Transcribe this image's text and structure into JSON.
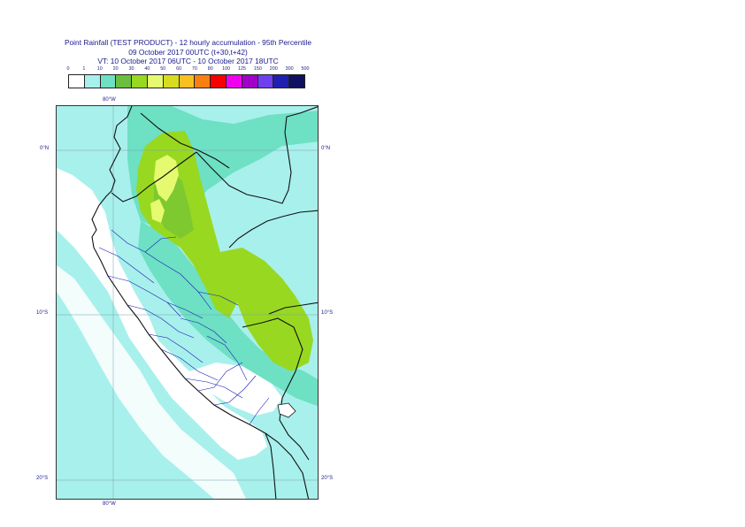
{
  "title": {
    "line1": "Point Rainfall (TEST PRODUCT) - 12 hourly accumulation - 95th Percentile",
    "line2": "09 October 2017 00UTC (t+30,t+42)",
    "line3": "VT: 10 October 2017 06UTC - 10 October 2017 18UTC"
  },
  "legend": {
    "thresholds": [
      "0",
      "1",
      "10",
      "20",
      "30",
      "40",
      "50",
      "60",
      "70",
      "80",
      "100",
      "125",
      "150",
      "200",
      "300",
      "500"
    ],
    "colors": [
      "#ffffff",
      "#a8f0ec",
      "#6ee0c4",
      "#6cbf3c",
      "#98d820",
      "#e6fa70",
      "#d8dc20",
      "#f8c020",
      "#f88010",
      "#f80000",
      "#f000f0",
      "#a000c8",
      "#7040f0",
      "#2020b0",
      "#101060"
    ]
  },
  "map": {
    "lon_label_top": "80°W",
    "lon_label_bottom": "80°W",
    "lat_labels_left": [
      "0°N",
      "10°S",
      "20°S"
    ],
    "lat_labels_right": [
      "0°N",
      "10°S",
      "20°S"
    ],
    "colors": {
      "ocean_light": "#a8f0ec",
      "mid": "#6ee0c4",
      "green": "#98d820",
      "green_dark": "#6cbf3c",
      "yellow": "#e6fa70",
      "dry": "#ffffff",
      "border": "#111111",
      "admin": "#1a1ab4",
      "grid": "#7aa0a8"
    }
  }
}
